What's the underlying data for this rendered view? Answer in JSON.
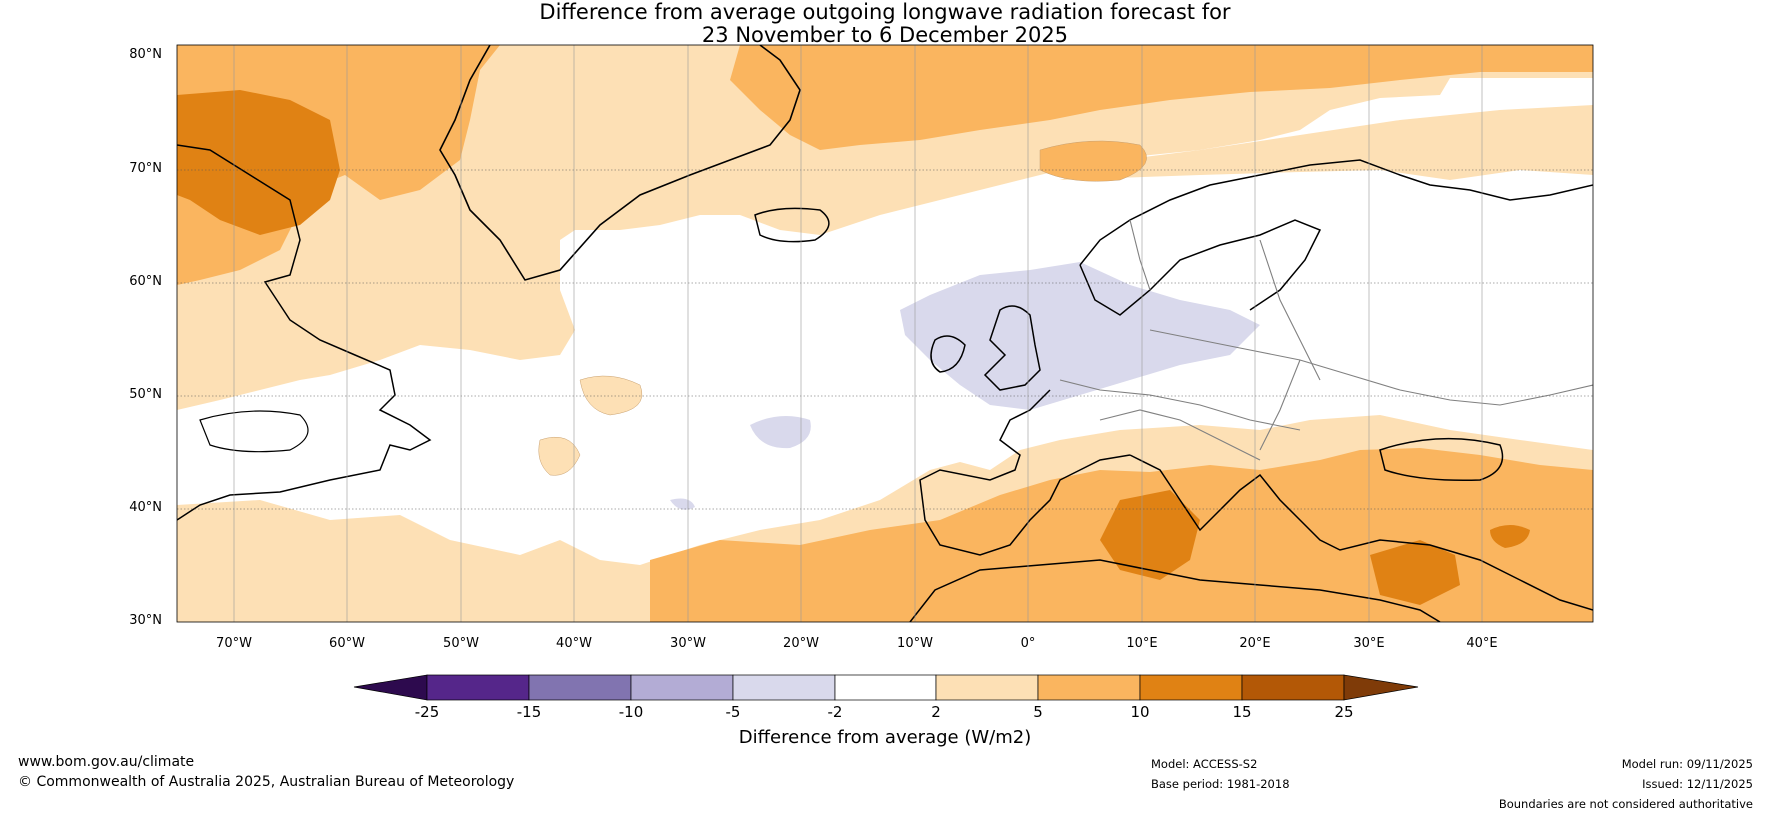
{
  "title": {
    "line1": "Difference from average outgoing longwave radiation forecast for",
    "line2": "23 November to 6 December 2025"
  },
  "axes": {
    "latitude_labels": [
      "80°N",
      "70°N",
      "60°N",
      "50°N",
      "40°N",
      "30°N"
    ],
    "longitude_labels": [
      "70°W",
      "60°W",
      "50°W",
      "40°W",
      "30°W",
      "20°W",
      "10°W",
      "0°",
      "10°E",
      "20°E",
      "30°E",
      "40°E"
    ]
  },
  "colorbar": {
    "ticks": [
      "-25",
      "-15",
      "-10",
      "-5",
      "-2",
      "2",
      "5",
      "10",
      "15",
      "25"
    ],
    "label": "Difference from average (W/m2)",
    "colors": [
      "#2d0a4e",
      "#55268a",
      "#8174b0",
      "#b3acd5",
      "#d9d9ec",
      "#ffffff",
      "#fde0b5",
      "#fab55f",
      "#e08214",
      "#b35806",
      "#7f3b08"
    ]
  },
  "footer": {
    "website": "www.bom.gov.au/climate",
    "copyright": "© Commonwealth of Australia 2025, Australian Bureau of Meteorology",
    "model": "Model: ACCESS-S2",
    "base_period": "Base period: 1981-2018",
    "model_run": "Model run: 09/11/2025",
    "issued": "Issued: 12/11/2025",
    "disclaimer": "Boundaries are not considered authoritative"
  }
}
